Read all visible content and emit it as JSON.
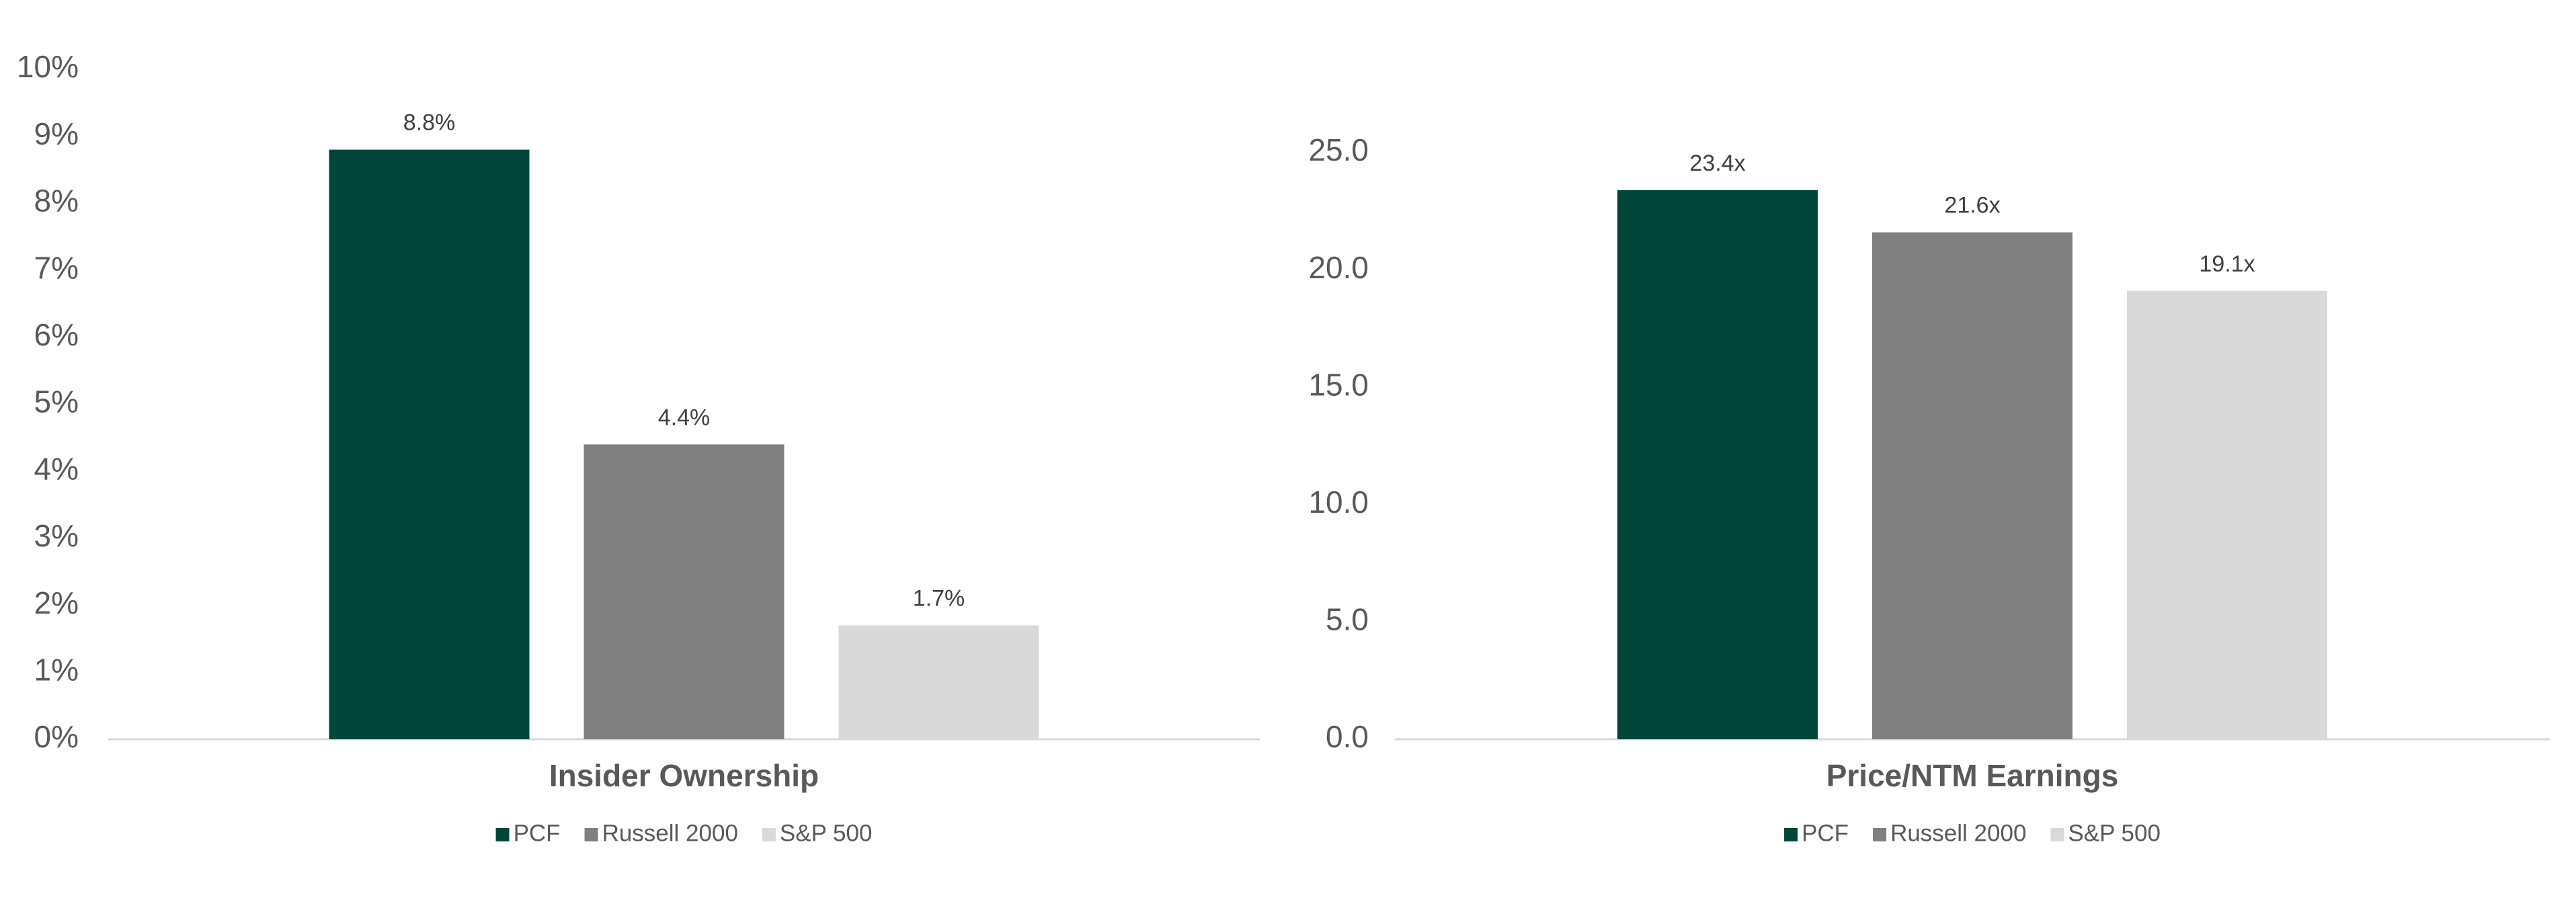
{
  "chart_data": [
    {
      "type": "bar",
      "categories": [
        "Insider Ownership"
      ],
      "series": [
        {
          "name": "PCF",
          "color": "#00463a",
          "values": [
            8.8
          ],
          "value_labels": [
            "8.8%"
          ]
        },
        {
          "name": "Russell 2000",
          "color": "#808080",
          "values": [
            4.4
          ],
          "value_labels": [
            "4.4%"
          ]
        },
        {
          "name": "S&P 500",
          "color": "#d9d9d9",
          "values": [
            1.7
          ],
          "value_labels": [
            "1.7%"
          ]
        }
      ],
      "ylim": [
        0,
        10
      ],
      "yticks": [
        {
          "value": 0,
          "label": "0%"
        },
        {
          "value": 1,
          "label": "1%"
        },
        {
          "value": 2,
          "label": "2%"
        },
        {
          "value": 3,
          "label": "3%"
        },
        {
          "value": 4,
          "label": "4%"
        },
        {
          "value": 5,
          "label": "5%"
        },
        {
          "value": 6,
          "label": "6%"
        },
        {
          "value": 7,
          "label": "7%"
        },
        {
          "value": 8,
          "label": "8%"
        },
        {
          "value": 9,
          "label": "9%"
        },
        {
          "value": 10,
          "label": "10%"
        }
      ],
      "grid": false,
      "legend": "bottom"
    },
    {
      "type": "bar",
      "categories": [
        "Price/NTM Earnings"
      ],
      "series": [
        {
          "name": "PCF",
          "color": "#00463a",
          "values": [
            23.4
          ],
          "value_labels": [
            "23.4x"
          ]
        },
        {
          "name": "Russell 2000",
          "color": "#808080",
          "values": [
            21.6
          ],
          "value_labels": [
            "21.6x"
          ]
        },
        {
          "name": "S&P 500",
          "color": "#d9d9d9",
          "values": [
            19.1
          ],
          "value_labels": [
            "19.1x"
          ]
        }
      ],
      "ylim": [
        0,
        25
      ],
      "yticks": [
        {
          "value": 0,
          "label": "0.0"
        },
        {
          "value": 5,
          "label": "5.0"
        },
        {
          "value": 10,
          "label": "10.0"
        },
        {
          "value": 15,
          "label": "15.0"
        },
        {
          "value": 20,
          "label": "20.0"
        },
        {
          "value": 25,
          "label": "25.0"
        }
      ],
      "grid": false,
      "legend": "bottom"
    }
  ]
}
